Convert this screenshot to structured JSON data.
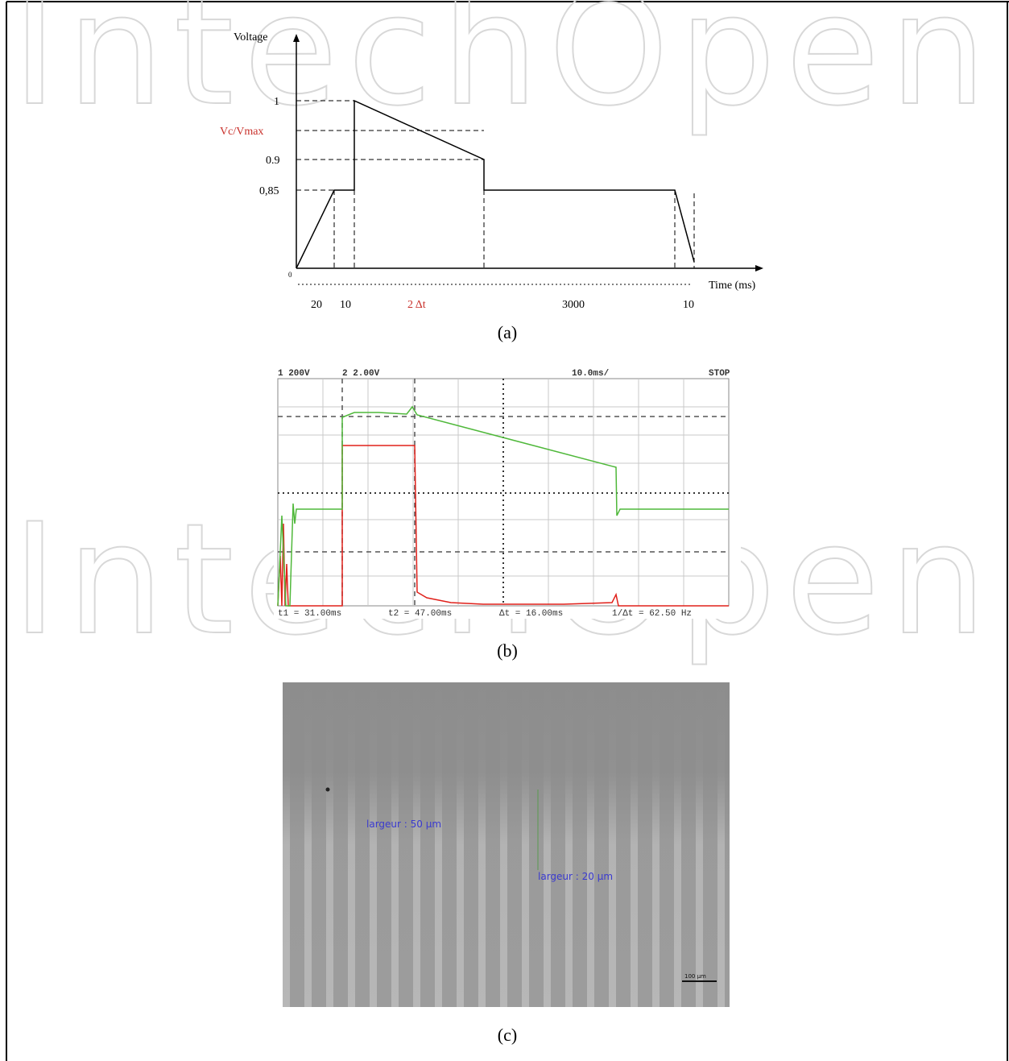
{
  "watermark": "IntechOpen",
  "figure_a": {
    "y_axis_label": "Voltage",
    "x_axis_label": "Time (ms)",
    "level_labels": [
      "1",
      "Vc/Vmax",
      "0.9",
      "0,85"
    ],
    "origin_label": "0",
    "interval_labels": [
      "20",
      "10",
      "2 Δt",
      "3000",
      "10"
    ],
    "caption": "(a)"
  },
  "figure_b": {
    "header": [
      "1 200V",
      "2 2.00V",
      "10.0ms/",
      "STOP"
    ],
    "footer": [
      "t1 = 31.00ms",
      "t2 = 47.00ms",
      "Δt = 16.00ms",
      "1/Δt = 62.50 Hz"
    ],
    "caption": "(b)"
  },
  "figure_c": {
    "annotations": [
      "largeur : 50 µm",
      "largeur : 20 µm"
    ],
    "scale_bar": "100 µm",
    "caption": "(c)"
  }
}
